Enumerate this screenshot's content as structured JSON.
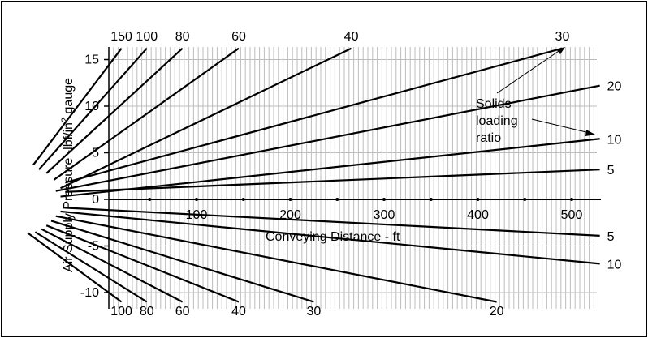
{
  "chart_data": {
    "type": "line",
    "xlabel": "Conveying Distance - ft",
    "ylabel_parts": {
      "base": "Air Supply Pressure -lbf/in",
      "sup": "2",
      "tail": " gauge"
    },
    "x_ticks": [
      "100",
      "200",
      "300",
      "400",
      "500"
    ],
    "y_ticks": [
      "15",
      "10",
      "5",
      "0",
      "-5",
      "-10"
    ],
    "xlim": [
      -100,
      540
    ],
    "ylim": [
      -11,
      17
    ],
    "grid": true,
    "annotation": [
      "Solids",
      "loading",
      "ratio"
    ],
    "positive_lines": [
      {
        "label": "150",
        "points": [
          [
            -74,
            3.7
          ],
          [
            20,
            16.2
          ]
        ]
      },
      {
        "label": "100",
        "points": [
          [
            -68,
            3.2
          ],
          [
            47,
            16.2
          ]
        ]
      },
      {
        "label": "80",
        "points": [
          [
            -60,
            2.8
          ],
          [
            85,
            16.2
          ]
        ]
      },
      {
        "label": "60",
        "points": [
          [
            -52,
            2.1
          ],
          [
            145,
            16.2
          ]
        ]
      },
      {
        "label": "40",
        "points": [
          [
            -45,
            1.2
          ],
          [
            265,
            16.2
          ]
        ]
      },
      {
        "label": "30",
        "points": [
          [
            -40,
            1.8
          ],
          [
            490,
            16.2
          ]
        ]
      },
      {
        "label": "20",
        "points": [
          [
            -50,
            0.9
          ],
          [
            530,
            12.2
          ]
        ]
      },
      {
        "label": "10",
        "points": [
          [
            -45,
            0.3
          ],
          [
            530,
            6.5
          ]
        ]
      },
      {
        "label": "5",
        "points": [
          [
            -40,
            0.8
          ],
          [
            530,
            3.2
          ]
        ]
      }
    ],
    "negative_lines": [
      {
        "label": "5",
        "points": [
          [
            -40,
            -0.9
          ],
          [
            530,
            -3.9
          ]
        ]
      },
      {
        "label": "10",
        "points": [
          [
            -45,
            -1.3
          ],
          [
            530,
            -6.9
          ]
        ]
      },
      {
        "label": "20",
        "points": [
          [
            -50,
            -1.8
          ],
          [
            420,
            -11.0
          ]
        ]
      },
      {
        "label": "30",
        "points": [
          [
            -55,
            -2.3
          ],
          [
            225,
            -11.0
          ]
        ]
      },
      {
        "label": "40",
        "points": [
          [
            -60,
            -2.8
          ],
          [
            145,
            -11.0
          ]
        ]
      },
      {
        "label": "60",
        "points": [
          [
            -65,
            -3.2
          ],
          [
            85,
            -11.0
          ]
        ]
      },
      {
        "label": "80",
        "points": [
          [
            -72,
            -3.5
          ],
          [
            47,
            -11.0
          ]
        ]
      },
      {
        "label": "100",
        "points": [
          [
            -80,
            -3.6
          ],
          [
            20,
            -11.0
          ]
        ]
      }
    ]
  }
}
